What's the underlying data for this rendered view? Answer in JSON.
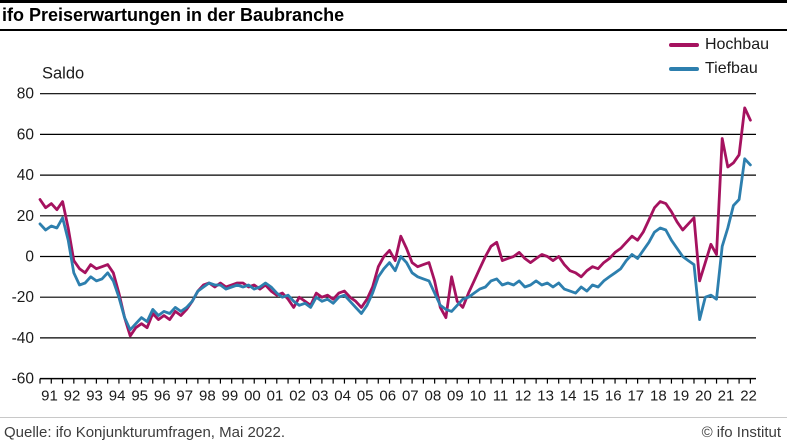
{
  "header": {
    "title": "ifo Preiserwartungen in der Baubranche"
  },
  "axis_label": "Saldo",
  "legend": [
    {
      "label": "Hochbau",
      "color": "#a5125f"
    },
    {
      "label": "Tiefbau",
      "color": "#2d7fae"
    }
  ],
  "footer": {
    "source": "Quelle: ifo Konjunkturumfragen, Mai 2022.",
    "copyright": "© ifo Institut"
  },
  "chart_data": {
    "type": "line",
    "title": "ifo Preiserwartungen in der Baubranche",
    "ylabel": "Saldo",
    "ylim": [
      -60,
      88
    ],
    "xlim": [
      1991.0,
      2022.75
    ],
    "grid": "horizontal",
    "legend_position": "top-right",
    "y_ticks": [
      80,
      60,
      40,
      20,
      0,
      -20,
      -40,
      -60
    ],
    "x_tick_labels": [
      "91",
      "92",
      "93",
      "94",
      "95",
      "96",
      "97",
      "98",
      "99",
      "00",
      "01",
      "02",
      "03",
      "04",
      "05",
      "06",
      "07",
      "08",
      "09",
      "10",
      "11",
      "12",
      "13",
      "14",
      "15",
      "16",
      "17",
      "18",
      "19",
      "20",
      "21",
      "22"
    ],
    "x_start": 1991.0,
    "x_step": 0.25,
    "series": [
      {
        "name": "Hochbau",
        "color": "#a5125f",
        "values": [
          28,
          24,
          26,
          23,
          27,
          14,
          -2,
          -6,
          -8,
          -4,
          -6,
          -5,
          -4,
          -8,
          -18,
          -30,
          -39,
          -35,
          -33,
          -35,
          -28,
          -31,
          -29,
          -31,
          -27,
          -29,
          -26,
          -22,
          -17,
          -14,
          -13,
          -15,
          -13,
          -15,
          -14,
          -13,
          -13,
          -15,
          -14,
          -16,
          -14,
          -17,
          -19,
          -18,
          -21,
          -25,
          -20,
          -22,
          -24,
          -18,
          -20,
          -19,
          -21,
          -18,
          -17,
          -20,
          -22,
          -25,
          -21,
          -15,
          -5,
          0,
          3,
          -2,
          10,
          4,
          -3,
          -5,
          -4,
          -3,
          -12,
          -25,
          -30,
          -10,
          -22,
          -25,
          -18,
          -12,
          -6,
          0,
          5,
          7,
          -2,
          -1,
          0,
          2,
          -1,
          -3,
          -1,
          1,
          0,
          -2,
          0,
          -4,
          -7,
          -8,
          -10,
          -7,
          -5,
          -6,
          -3,
          -1,
          2,
          4,
          7,
          10,
          8,
          12,
          18,
          24,
          27,
          26,
          22,
          17,
          13,
          16,
          19,
          -12,
          -3,
          6,
          1,
          58,
          44,
          46,
          50,
          73,
          67
        ]
      },
      {
        "name": "Tiefbau",
        "color": "#2d7fae",
        "values": [
          16,
          13,
          15,
          14,
          19,
          8,
          -8,
          -14,
          -13,
          -10,
          -12,
          -11,
          -8,
          -12,
          -20,
          -30,
          -36,
          -33,
          -30,
          -32,
          -26,
          -29,
          -27,
          -28,
          -25,
          -27,
          -25,
          -22,
          -17,
          -15,
          -13,
          -14,
          -14,
          -16,
          -15,
          -14,
          -15,
          -14,
          -16,
          -15,
          -13,
          -15,
          -18,
          -20,
          -19,
          -22,
          -24,
          -23,
          -25,
          -20,
          -22,
          -21,
          -23,
          -20,
          -19,
          -22,
          -25,
          -28,
          -24,
          -18,
          -10,
          -6,
          -3,
          -7,
          0,
          -3,
          -8,
          -10,
          -11,
          -12,
          -18,
          -24,
          -26,
          -27,
          -24,
          -21,
          -20,
          -18,
          -16,
          -15,
          -12,
          -11,
          -14,
          -13,
          -14,
          -12,
          -15,
          -14,
          -12,
          -14,
          -13,
          -15,
          -13,
          -16,
          -17,
          -18,
          -15,
          -17,
          -14,
          -15,
          -12,
          -10,
          -8,
          -6,
          -2,
          1,
          -1,
          3,
          7,
          12,
          14,
          13,
          8,
          4,
          0,
          -2,
          -4,
          -31,
          -20,
          -19,
          -21,
          5,
          14,
          25,
          28,
          48,
          45
        ]
      }
    ]
  }
}
